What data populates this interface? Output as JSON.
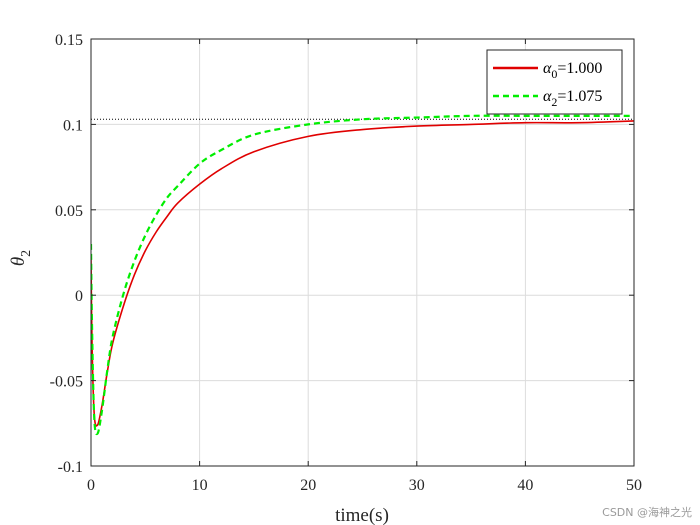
{
  "chart_data": {
    "type": "line",
    "xlabel": "time(s)",
    "ylabel_symbol": "θ",
    "ylabel_sub": "2",
    "xlim": [
      0,
      50
    ],
    "ylim": [
      -0.1,
      0.15
    ],
    "xticks": [
      0,
      10,
      20,
      30,
      40,
      50
    ],
    "xtick_labels": [
      "0",
      "10",
      "20",
      "30",
      "40",
      "50"
    ],
    "yticks": [
      -0.1,
      -0.05,
      0,
      0.05,
      0.1,
      0.15
    ],
    "ytick_labels": [
      "-0.1",
      "-0.05",
      "0",
      "0.05",
      "0.1",
      "0.15"
    ],
    "grid": true,
    "legend_position": "top-right",
    "reference_line": {
      "y": 0.103,
      "style": "dotted",
      "color": "#000000"
    },
    "series": [
      {
        "symbol": "α",
        "sub": "0",
        "suffix": "=1.000",
        "color": "#e00000",
        "dash": "solid",
        "x": [
          0,
          0.1,
          0.3,
          0.6,
          1.0,
          1.5,
          2,
          3,
          4,
          5,
          6,
          7,
          8,
          10,
          12,
          15,
          20,
          25,
          30,
          35,
          40,
          45,
          50
        ],
        "y": [
          0.022,
          -0.03,
          -0.07,
          -0.076,
          -0.065,
          -0.045,
          -0.028,
          -0.006,
          0.012,
          0.026,
          0.037,
          0.046,
          0.054,
          0.065,
          0.074,
          0.084,
          0.093,
          0.097,
          0.099,
          0.1,
          0.101,
          0.101,
          0.102
        ]
      },
      {
        "symbol": "α",
        "sub": "2",
        "suffix": "=1.075",
        "color": "#00ee00",
        "dash": "dashed",
        "x": [
          0,
          0.1,
          0.3,
          0.6,
          1.0,
          1.5,
          2,
          3,
          4,
          5,
          6,
          7,
          8,
          10,
          12,
          15,
          20,
          25,
          30,
          35,
          40,
          45,
          50
        ],
        "y": [
          0.03,
          -0.02,
          -0.072,
          -0.081,
          -0.068,
          -0.044,
          -0.024,
          0.001,
          0.02,
          0.035,
          0.047,
          0.057,
          0.064,
          0.077,
          0.085,
          0.094,
          0.1,
          0.103,
          0.104,
          0.105,
          0.105,
          0.105,
          0.105
        ]
      }
    ]
  },
  "watermark": "CSDN @海神之光"
}
